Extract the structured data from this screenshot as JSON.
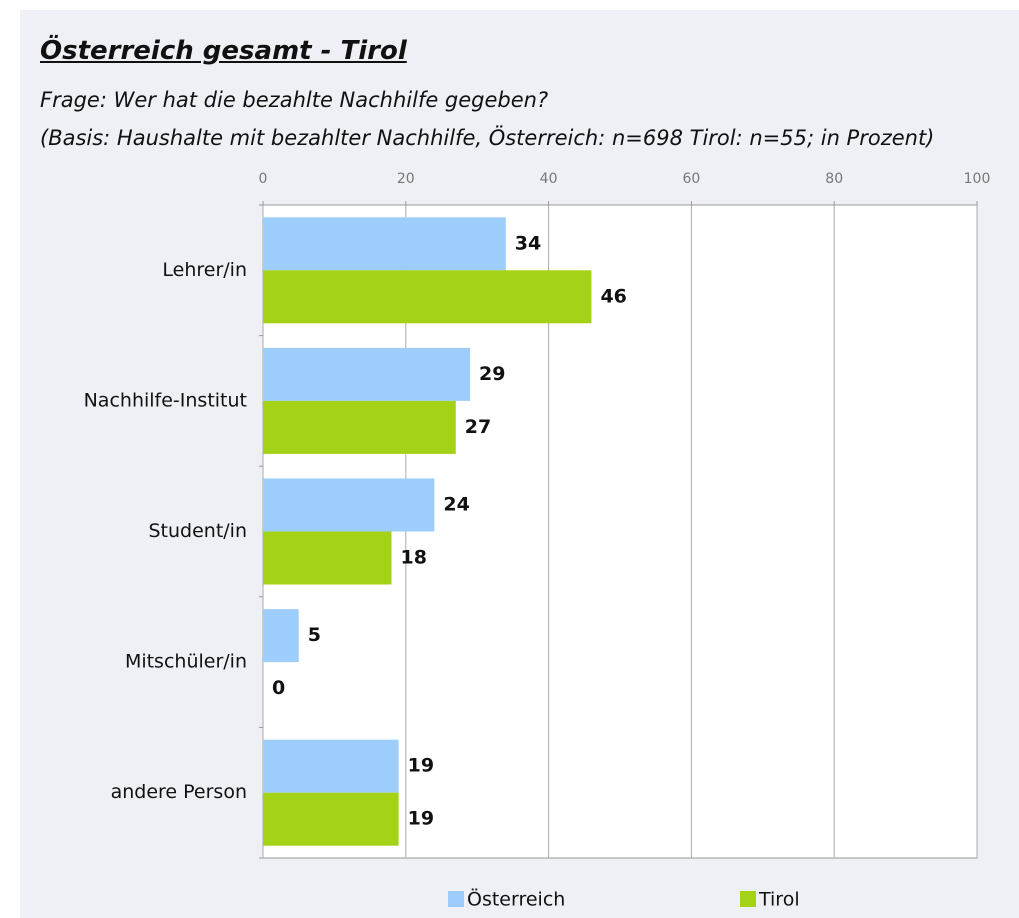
{
  "chart_data": {
    "type": "bar",
    "orientation": "horizontal",
    "title": "Österreich gesamt - Tirol",
    "subtitle": [
      "Frage: Wer hat die bezahlte Nachhilfe gegeben?",
      "(Basis: Haushalte mit bezahlter Nachhilfe, Österreich: n=698 Tirol: n=55; in Prozent)"
    ],
    "categories": [
      "Lehrer/in",
      "Nachhilfe-Institut",
      "Student/in",
      "Mitschüler/in",
      "andere Person"
    ],
    "series": [
      {
        "name": "Österreich",
        "color": "#9ccdfb",
        "values": [
          34,
          29,
          24,
          5,
          19
        ]
      },
      {
        "name": "Tirol",
        "color": "#a4d217",
        "values": [
          46,
          27,
          18,
          0,
          19
        ]
      }
    ],
    "xlim": [
      0,
      100
    ],
    "xticks": [
      0,
      20,
      40,
      60,
      80,
      100
    ],
    "grid": true,
    "legend": "bottom"
  }
}
